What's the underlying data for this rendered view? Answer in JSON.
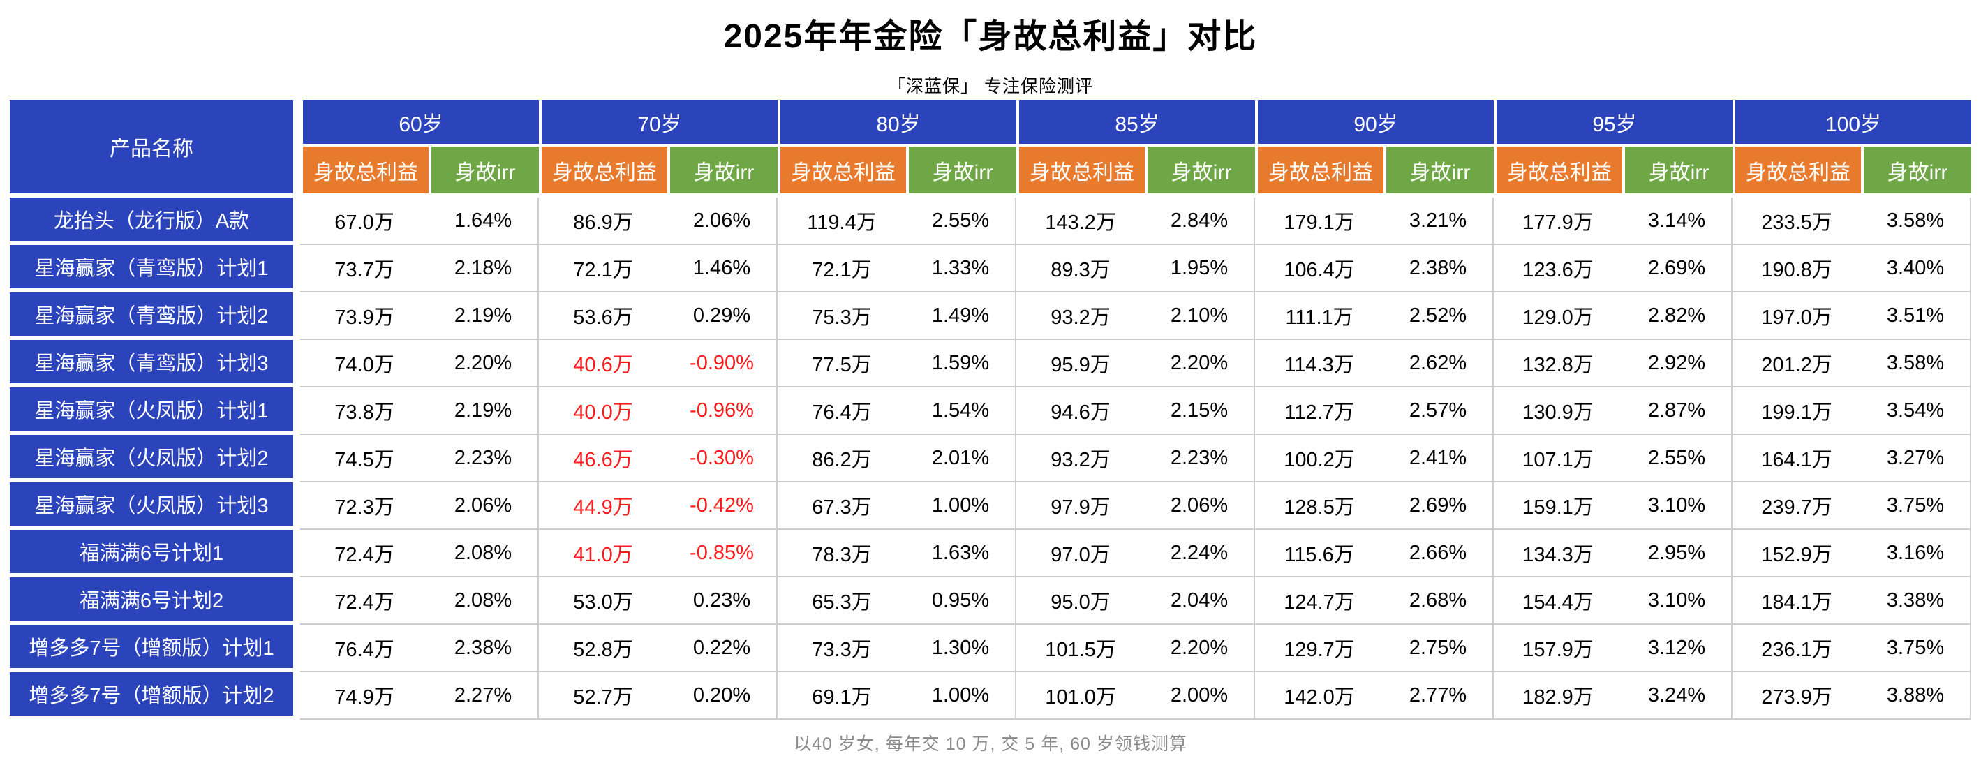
{
  "title": "2025年年金险「身故总利益」对比",
  "subtitle": "「深蓝保」 专注保险测评",
  "footnote": "以40 岁女, 每年交 10 万, 交 5 年, 60 岁领钱测算",
  "colors": {
    "header_blue": "#2b44bc",
    "benefit_orange": "#e87a2d",
    "irr_green": "#6fa746",
    "negative_red": "#fe1b1c",
    "grid_gray": "#cfcfcf"
  },
  "chart_data": {
    "type": "table",
    "title": "2025年年金险「身故总利益」对比",
    "product_header": "产品名称",
    "age_groups": [
      "60岁",
      "70岁",
      "80岁",
      "85岁",
      "90岁",
      "95岁",
      "100岁"
    ],
    "sub_headers": [
      "身故总利益",
      "身故irr"
    ],
    "rows": [
      {
        "product": "龙抬头（龙行版）A款",
        "values": [
          [
            "67.0万",
            "1.64%"
          ],
          [
            "86.9万",
            "2.06%"
          ],
          [
            "119.4万",
            "2.55%"
          ],
          [
            "143.2万",
            "2.84%"
          ],
          [
            "179.1万",
            "3.21%"
          ],
          [
            "177.9万",
            "3.14%"
          ],
          [
            "233.5万",
            "3.58%"
          ]
        ]
      },
      {
        "product": "星海赢家（青鸾版）计划1",
        "values": [
          [
            "73.7万",
            "2.18%"
          ],
          [
            "72.1万",
            "1.46%"
          ],
          [
            "72.1万",
            "1.33%"
          ],
          [
            "89.3万",
            "1.95%"
          ],
          [
            "106.4万",
            "2.38%"
          ],
          [
            "123.6万",
            "2.69%"
          ],
          [
            "190.8万",
            "3.40%"
          ]
        ]
      },
      {
        "product": "星海赢家（青鸾版）计划2",
        "values": [
          [
            "73.9万",
            "2.19%"
          ],
          [
            "53.6万",
            "0.29%"
          ],
          [
            "75.3万",
            "1.49%"
          ],
          [
            "93.2万",
            "2.10%"
          ],
          [
            "111.1万",
            "2.52%"
          ],
          [
            "129.0万",
            "2.82%"
          ],
          [
            "197.0万",
            "3.51%"
          ]
        ]
      },
      {
        "product": "星海赢家（青鸾版）计划3",
        "values": [
          [
            "74.0万",
            "2.20%"
          ],
          [
            "40.6万",
            "-0.90%"
          ],
          [
            "77.5万",
            "1.59%"
          ],
          [
            "95.9万",
            "2.20%"
          ],
          [
            "114.3万",
            "2.62%"
          ],
          [
            "132.8万",
            "2.92%"
          ],
          [
            "201.2万",
            "3.58%"
          ]
        ]
      },
      {
        "product": "星海赢家（火凤版）计划1",
        "values": [
          [
            "73.8万",
            "2.19%"
          ],
          [
            "40.0万",
            "-0.96%"
          ],
          [
            "76.4万",
            "1.54%"
          ],
          [
            "94.6万",
            "2.15%"
          ],
          [
            "112.7万",
            "2.57%"
          ],
          [
            "130.9万",
            "2.87%"
          ],
          [
            "199.1万",
            "3.54%"
          ]
        ]
      },
      {
        "product": "星海赢家（火凤版）计划2",
        "values": [
          [
            "74.5万",
            "2.23%"
          ],
          [
            "46.6万",
            "-0.30%"
          ],
          [
            "86.2万",
            "2.01%"
          ],
          [
            "93.2万",
            "2.23%"
          ],
          [
            "100.2万",
            "2.41%"
          ],
          [
            "107.1万",
            "2.55%"
          ],
          [
            "164.1万",
            "3.27%"
          ]
        ]
      },
      {
        "product": "星海赢家（火凤版）计划3",
        "values": [
          [
            "72.3万",
            "2.06%"
          ],
          [
            "44.9万",
            "-0.42%"
          ],
          [
            "67.3万",
            "1.00%"
          ],
          [
            "97.9万",
            "2.06%"
          ],
          [
            "128.5万",
            "2.69%"
          ],
          [
            "159.1万",
            "3.10%"
          ],
          [
            "239.7万",
            "3.75%"
          ]
        ]
      },
      {
        "product": "福满满6号计划1",
        "values": [
          [
            "72.4万",
            "2.08%"
          ],
          [
            "41.0万",
            "-0.85%"
          ],
          [
            "78.3万",
            "1.63%"
          ],
          [
            "97.0万",
            "2.24%"
          ],
          [
            "115.6万",
            "2.66%"
          ],
          [
            "134.3万",
            "2.95%"
          ],
          [
            "152.9万",
            "3.16%"
          ]
        ]
      },
      {
        "product": "福满满6号计划2",
        "values": [
          [
            "72.4万",
            "2.08%"
          ],
          [
            "53.0万",
            "0.23%"
          ],
          [
            "65.3万",
            "0.95%"
          ],
          [
            "95.0万",
            "2.04%"
          ],
          [
            "124.7万",
            "2.68%"
          ],
          [
            "154.4万",
            "3.10%"
          ],
          [
            "184.1万",
            "3.38%"
          ]
        ]
      },
      {
        "product": "增多多7号（增额版）计划1",
        "values": [
          [
            "76.4万",
            "2.38%"
          ],
          [
            "52.8万",
            "0.22%"
          ],
          [
            "73.3万",
            "1.30%"
          ],
          [
            "101.5万",
            "2.20%"
          ],
          [
            "129.7万",
            "2.75%"
          ],
          [
            "157.9万",
            "3.12%"
          ],
          [
            "236.1万",
            "3.75%"
          ]
        ]
      },
      {
        "product": "增多多7号（增额版）计划2",
        "values": [
          [
            "74.9万",
            "2.27%"
          ],
          [
            "52.7万",
            "0.20%"
          ],
          [
            "69.1万",
            "1.00%"
          ],
          [
            "101.0万",
            "2.00%"
          ],
          [
            "142.0万",
            "2.77%"
          ],
          [
            "182.9万",
            "3.24%"
          ],
          [
            "273.9万",
            "3.88%"
          ]
        ]
      }
    ],
    "legend": {
      "benefit_column_color_hex": "#e87a2d",
      "irr_column_color_hex": "#6fa746",
      "negative_values_color_hex": "#fe1b1c"
    }
  }
}
